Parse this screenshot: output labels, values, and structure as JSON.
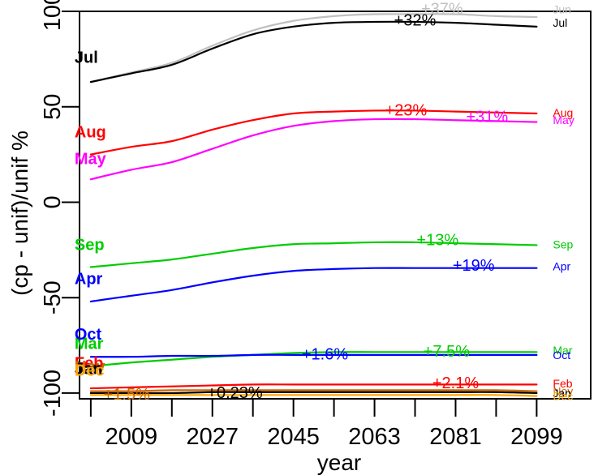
{
  "chart_data": {
    "type": "line",
    "xlabel": "year",
    "ylabel": "(cp - unif)/unif %",
    "xlim": [
      1997.5,
      2111
    ],
    "ylim": [
      -103,
      100
    ],
    "x_ticks": [
      2009,
      2027,
      2045,
      2063,
      2081,
      2099
    ],
    "y_ticks": [
      100,
      50,
      0,
      -50,
      -100
    ],
    "x_minor_ticks": [
      2000,
      2018,
      2036,
      2054,
      2072,
      2090
    ],
    "grid": false,
    "legend": "none",
    "x": [
      2000,
      2009,
      2018,
      2027,
      2036,
      2045,
      2054,
      2063,
      2072,
      2081,
      2090,
      2099
    ],
    "series": [
      {
        "name": "Jun",
        "color": "#c0c0c0",
        "start_label": "",
        "end_label": "Jun",
        "pct": {
          "text": "+37%",
          "x": 2078,
          "y": 101.5
        },
        "values": [
          63,
          68,
          73,
          82,
          90,
          95,
          97.5,
          98.5,
          98.5,
          98.5,
          97.5,
          97
        ]
      },
      {
        "name": "Jul",
        "color": "#000000",
        "start_label": "Jul",
        "end_label": "Jul",
        "pct": {
          "text": "+32%",
          "x": 2072,
          "y": 95.5
        },
        "values": [
          63,
          67.5,
          72,
          80.5,
          88,
          92,
          94,
          94.5,
          94.5,
          94,
          93,
          92
        ]
      },
      {
        "name": "Aug",
        "color": "#ff0000",
        "start_label": "Aug",
        "end_label": "Aug",
        "pct": {
          "text": "+23%",
          "x": 2070,
          "y": 48.5
        },
        "values": [
          25,
          29,
          32,
          38,
          43,
          46.5,
          47.5,
          48,
          48,
          47.5,
          47,
          46.5
        ]
      },
      {
        "name": "May",
        "color": "#ff00ff",
        "start_label": "May",
        "end_label": "May",
        "pct": {
          "text": "+31%",
          "x": 2088,
          "y": 45
        },
        "values": [
          12,
          17,
          21,
          28,
          35,
          40,
          42.5,
          43.5,
          43.5,
          43,
          42.5,
          42
        ]
      },
      {
        "name": "Sep",
        "color": "#00cc00",
        "start_label": "Sep",
        "end_label": "Sep",
        "pct": {
          "text": "+13%",
          "x": 2077,
          "y": -19.5
        },
        "values": [
          -34,
          -32,
          -30,
          -27,
          -24,
          -22,
          -21.5,
          -21,
          -21,
          -21.5,
          -22,
          -22.5
        ]
      },
      {
        "name": "Apr",
        "color": "#0000ff",
        "start_label": "Apr",
        "end_label": "Apr",
        "pct": {
          "text": "+19%",
          "x": 2085,
          "y": -33
        },
        "values": [
          -52,
          -49,
          -46,
          -42,
          -38.5,
          -36,
          -35,
          -34.5,
          -34.5,
          -34.5,
          -34.5,
          -34.5
        ]
      },
      {
        "name": "Mar",
        "color": "#00cc00",
        "start_label": "Mar",
        "end_label": "Mar",
        "pct": {
          "text": "+7.5%",
          "x": 2079,
          "y": -78
        },
        "values": [
          -86,
          -84,
          -82.5,
          -81,
          -80,
          -79,
          -78.5,
          -78.5,
          -78.5,
          -78.5,
          -78.5,
          -78.5
        ]
      },
      {
        "name": "Oct",
        "color": "#0000ff",
        "start_label": "Oct",
        "end_label": "Oct",
        "pct": {
          "text": "+1.6%",
          "x": 2052,
          "y": -79.5
        },
        "values": [
          -81,
          -81,
          -80.5,
          -80.5,
          -80,
          -80,
          -80,
          -80,
          -80,
          -80,
          -80,
          -80
        ]
      },
      {
        "name": "Feb",
        "color": "#ff0000",
        "start_label": "Feb",
        "end_label": "Feb",
        "pct": {
          "text": "+2.1%",
          "x": 2081,
          "y": -94.5
        },
        "values": [
          -97.5,
          -97,
          -96.5,
          -96,
          -95.5,
          -95.5,
          -95.5,
          -95.5,
          -95.5,
          -95.5,
          -95.5,
          -95.5
        ]
      },
      {
        "name": "Nov",
        "color": "#cc6600",
        "start_label": "Nov",
        "end_label": "Nov",
        "pct": {
          "text": "+1.5%",
          "x": 2008,
          "y": -100.5
        },
        "values": [
          -99,
          -99,
          -98.5,
          -98.5,
          -98.5,
          -98.5,
          -98.5,
          -98.5,
          -98.5,
          -98.5,
          -98.5,
          -99
        ]
      },
      {
        "name": "Jan",
        "color": "#000000",
        "start_label": "Jan",
        "end_label": "Jan",
        "pct": {
          "text": "+0.23%",
          "x": 2032,
          "y": -99.5
        },
        "values": [
          -100,
          -100,
          -100,
          -99.5,
          -99.5,
          -99.5,
          -99.5,
          -99.5,
          -99.5,
          -99.5,
          -99.5,
          -100
        ]
      },
      {
        "name": "Dec",
        "color": "#ffa500",
        "start_label": "Dec",
        "end_label": "Dec",
        "pct": {
          "text": "",
          "x": 2032,
          "y": -101
        },
        "values": [
          -101,
          -101,
          -101,
          -101,
          -101,
          -101,
          -101,
          -101,
          -101,
          -101,
          -101,
          -101.5
        ]
      }
    ],
    "end_label_positions": {
      "Jun": 101,
      "Jul": 94,
      "Aug": 47,
      "May": 43,
      "Sep": -22,
      "Apr": -33.5,
      "Mar": -77.5,
      "Oct": -80,
      "Feb": -95,
      "Nov": -99,
      "Jan": -100,
      "Dec": -101.5
    },
    "start_label_positions": {
      "Jul": 76,
      "Aug": 37,
      "May": 23,
      "Sep": -22,
      "Apr": -40,
      "Oct": -69,
      "Mar": -74,
      "Feb": -84,
      "Nov": -86,
      "Jan": -87,
      "Dec": -88
    }
  }
}
